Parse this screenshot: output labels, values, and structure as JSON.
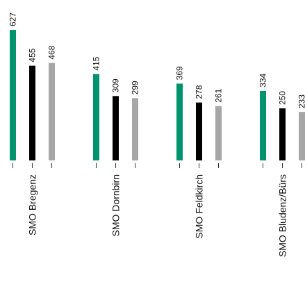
{
  "chart_data": {
    "type": "bar",
    "categories": [
      "SMO Bregenz",
      "SMO Dornbirn",
      "SMO Feldkirch",
      "SMO Bludenz/Bürs"
    ],
    "series": [
      {
        "values": [
          627,
          415,
          369,
          334
        ],
        "color": "#00936e"
      },
      {
        "values": [
          455,
          309,
          278,
          250
        ],
        "color": "#000000"
      },
      {
        "values": [
          468,
          299,
          261,
          233
        ],
        "color": "#a6a6a6"
      }
    ],
    "ylim": [
      0,
      627
    ],
    "grid": false,
    "legend": "none",
    "value_labels": true,
    "value_label_rotation": "vertical",
    "category_label_rotation": "vertical",
    "xlabel": "",
    "ylabel": "",
    "title": ""
  }
}
